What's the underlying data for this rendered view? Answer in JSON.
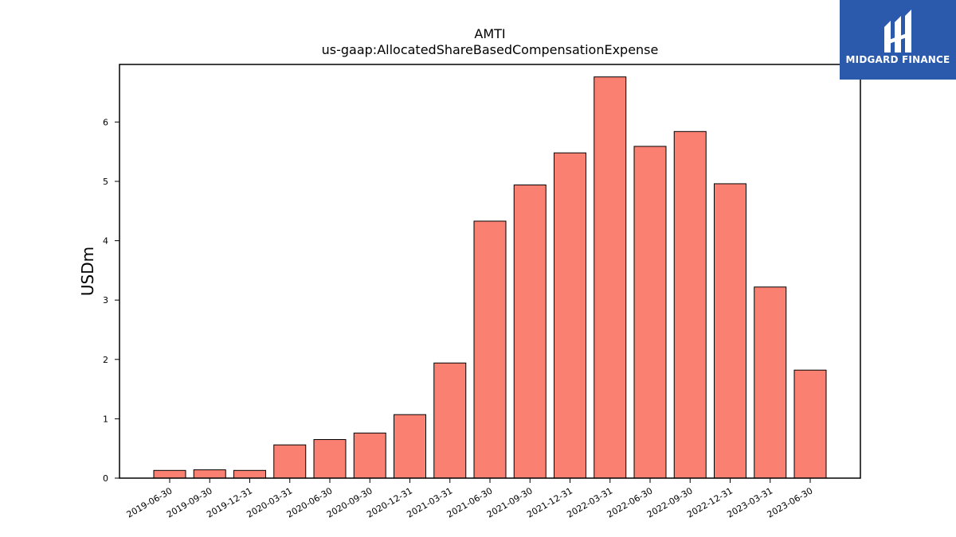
{
  "chart_data": {
    "type": "bar",
    "title": "AMTI",
    "subtitle": "us-gaap:AllocatedShareBasedCompensationExpense",
    "xlabel": "",
    "ylabel": "USDm",
    "categories": [
      "2019-06-30",
      "2019-09-30",
      "2019-12-31",
      "2020-03-31",
      "2020-06-30",
      "2020-09-30",
      "2020-12-31",
      "2021-03-31",
      "2021-06-30",
      "2021-09-30",
      "2021-12-31",
      "2022-03-31",
      "2022-06-30",
      "2022-09-30",
      "2022-12-31",
      "2023-03-31",
      "2023-06-30"
    ],
    "values": [
      0.13,
      0.14,
      0.13,
      0.56,
      0.65,
      0.76,
      1.07,
      1.94,
      4.33,
      4.94,
      5.48,
      6.76,
      5.59,
      5.84,
      4.96,
      3.22,
      1.82
    ],
    "ylim": [
      0,
      6.97
    ],
    "yticks": [
      0,
      1,
      2,
      3,
      4,
      5,
      6
    ],
    "grid": false,
    "legend": "none",
    "bar_color": "#fa8072",
    "edge_color": "#000000"
  },
  "logo": {
    "text": "MIDGARD FINANCE",
    "background": "#2b5aad"
  }
}
